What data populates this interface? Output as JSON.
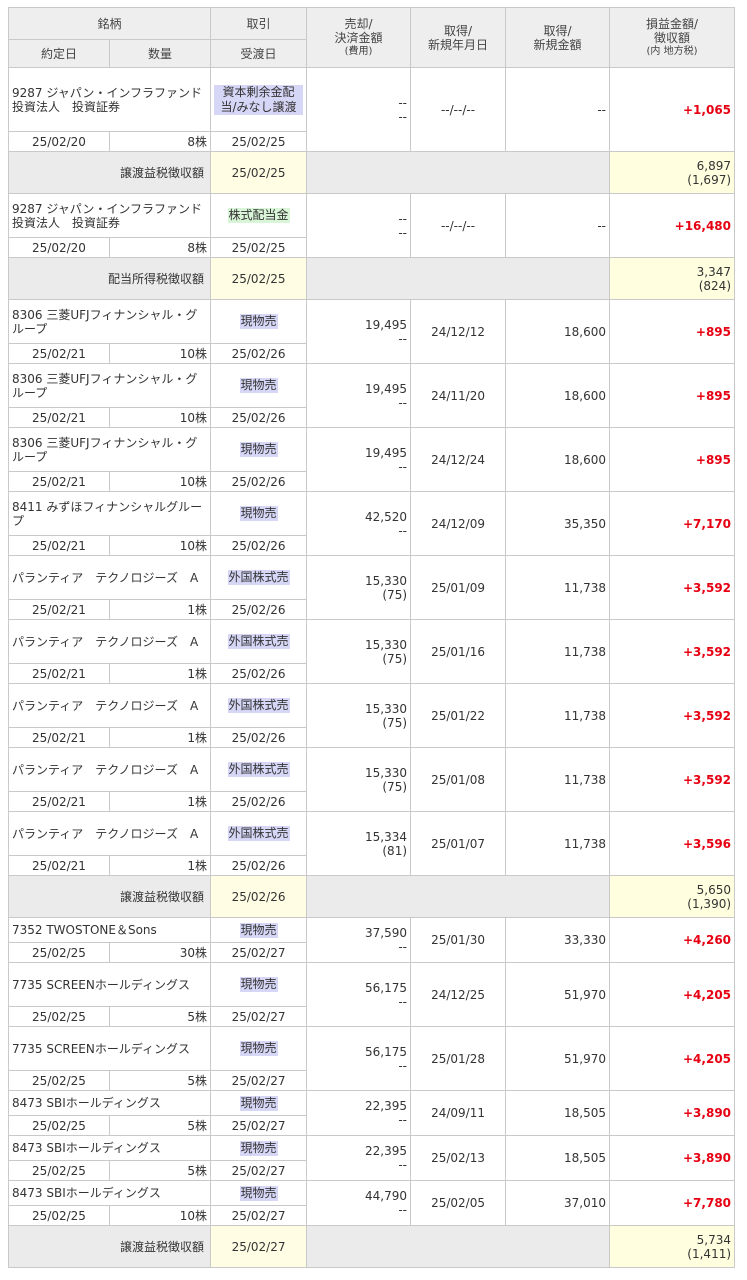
{
  "header": {
    "row1": [
      "銘柄",
      "取引",
      "売却/\n決済金額",
      "取得/\n新規年月日",
      "取得/\n新規金額",
      "損益金額/\n徴収額"
    ],
    "row2": [
      "約定日",
      "数量",
      "受渡日"
    ],
    "cost_note": "(費用)",
    "tax_note": "(内 地方税)"
  },
  "rows": [
    {
      "kind": "tx",
      "name": "9287 ジャパン・インフラファンド投資法人　投資証券",
      "type": "資本剰余金配当/みなし譲渡",
      "badge": "blue",
      "sell": "--",
      "cost": "--",
      "acq_date": "--/--/--",
      "acq_amt": "--",
      "pl": "+1,065",
      "trade_date": "25/02/20",
      "qty": "8株",
      "settle": "25/02/25",
      "h": 84
    },
    {
      "kind": "tax",
      "label": "譲渡益税徴収額",
      "date": "25/02/25",
      "amt": "6,897",
      "local": "(1,697)",
      "h": 42
    },
    {
      "kind": "tx",
      "name": "9287 ジャパン・インフラファンド投資法人　投資証券",
      "type": "株式配当金",
      "badge": "green",
      "sell": "--",
      "cost": "--",
      "acq_date": "--/--/--",
      "acq_amt": "--",
      "pl": "+16,480",
      "trade_date": "25/02/20",
      "qty": "8株",
      "settle": "25/02/25",
      "h": 64
    },
    {
      "kind": "tax",
      "label": "配当所得税徴収額",
      "date": "25/02/25",
      "amt": "3,347",
      "local": "(824)",
      "h": 42
    },
    {
      "kind": "tx",
      "name": "8306 三菱UFJフィナンシャル・グループ",
      "type": "現物売",
      "badge": "blue",
      "sell": "19,495",
      "cost": "--",
      "acq_date": "24/12/12",
      "acq_amt": "18,600",
      "pl": "+895",
      "trade_date": "25/02/21",
      "qty": "10株",
      "settle": "25/02/26",
      "h": 64
    },
    {
      "kind": "tx",
      "name": "8306 三菱UFJフィナンシャル・グループ",
      "type": "現物売",
      "badge": "blue",
      "sell": "19,495",
      "cost": "--",
      "acq_date": "24/11/20",
      "acq_amt": "18,600",
      "pl": "+895",
      "trade_date": "25/02/21",
      "qty": "10株",
      "settle": "25/02/26",
      "h": 64
    },
    {
      "kind": "tx",
      "name": "8306 三菱UFJフィナンシャル・グループ",
      "type": "現物売",
      "badge": "blue",
      "sell": "19,495",
      "cost": "--",
      "acq_date": "24/12/24",
      "acq_amt": "18,600",
      "pl": "+895",
      "trade_date": "25/02/21",
      "qty": "10株",
      "settle": "25/02/26",
      "h": 64
    },
    {
      "kind": "tx",
      "name": "8411 みずほフィナンシャルグループ",
      "type": "現物売",
      "badge": "blue",
      "sell": "42,520",
      "cost": "--",
      "acq_date": "24/12/09",
      "acq_amt": "35,350",
      "pl": "+7,170",
      "trade_date": "25/02/21",
      "qty": "10株",
      "settle": "25/02/26",
      "h": 64
    },
    {
      "kind": "tx",
      "name": "パランティア　テクノロジーズ　A",
      "type": "外国株式売",
      "badge": "blue",
      "sell": "15,330",
      "cost": "(75)",
      "acq_date": "25/01/09",
      "acq_amt": "11,738",
      "pl": "+3,592",
      "trade_date": "25/02/21",
      "qty": "1株",
      "settle": "25/02/26",
      "h": 64
    },
    {
      "kind": "tx",
      "name": "パランティア　テクノロジーズ　A",
      "type": "外国株式売",
      "badge": "blue",
      "sell": "15,330",
      "cost": "(75)",
      "acq_date": "25/01/16",
      "acq_amt": "11,738",
      "pl": "+3,592",
      "trade_date": "25/02/21",
      "qty": "1株",
      "settle": "25/02/26",
      "h": 64
    },
    {
      "kind": "tx",
      "name": "パランティア　テクノロジーズ　A",
      "type": "外国株式売",
      "badge": "blue",
      "sell": "15,330",
      "cost": "(75)",
      "acq_date": "25/01/22",
      "acq_amt": "11,738",
      "pl": "+3,592",
      "trade_date": "25/02/21",
      "qty": "1株",
      "settle": "25/02/26",
      "h": 64
    },
    {
      "kind": "tx",
      "name": "パランティア　テクノロジーズ　A",
      "type": "外国株式売",
      "badge": "blue",
      "sell": "15,330",
      "cost": "(75)",
      "acq_date": "25/01/08",
      "acq_amt": "11,738",
      "pl": "+3,592",
      "trade_date": "25/02/21",
      "qty": "1株",
      "settle": "25/02/26",
      "h": 64
    },
    {
      "kind": "tx",
      "name": "パランティア　テクノロジーズ　A",
      "type": "外国株式売",
      "badge": "blue",
      "sell": "15,334",
      "cost": "(81)",
      "acq_date": "25/01/07",
      "acq_amt": "11,738",
      "pl": "+3,596",
      "trade_date": "25/02/21",
      "qty": "1株",
      "settle": "25/02/26",
      "h": 64
    },
    {
      "kind": "tax",
      "label": "譲渡益税徴収額",
      "date": "25/02/26",
      "amt": "5,650",
      "local": "(1,390)",
      "h": 42
    },
    {
      "kind": "tx",
      "name": "7352 TWOSTONE＆Sons",
      "type": "現物売",
      "badge": "blue",
      "sell": "37,590",
      "cost": "--",
      "acq_date": "25/01/30",
      "acq_amt": "33,330",
      "pl": "+4,260",
      "trade_date": "25/02/25",
      "qty": "30株",
      "settle": "25/02/27",
      "h": 45
    },
    {
      "kind": "tx",
      "name": "7735 SCREENホールディングス",
      "type": "現物売",
      "badge": "blue",
      "sell": "56,175",
      "cost": "--",
      "acq_date": "24/12/25",
      "acq_amt": "51,970",
      "pl": "+4,205",
      "trade_date": "25/02/25",
      "qty": "5株",
      "settle": "25/02/27",
      "h": 64
    },
    {
      "kind": "tx",
      "name": "7735 SCREENホールディングス",
      "type": "現物売",
      "badge": "blue",
      "sell": "56,175",
      "cost": "--",
      "acq_date": "25/01/28",
      "acq_amt": "51,970",
      "pl": "+4,205",
      "trade_date": "25/02/25",
      "qty": "5株",
      "settle": "25/02/27",
      "h": 64
    },
    {
      "kind": "tx",
      "name": "8473 SBIホールディングス",
      "type": "現物売",
      "badge": "blue",
      "sell": "22,395",
      "cost": "--",
      "acq_date": "24/09/11",
      "acq_amt": "18,505",
      "pl": "+3,890",
      "trade_date": "25/02/25",
      "qty": "5株",
      "settle": "25/02/27",
      "h": 45
    },
    {
      "kind": "tx",
      "name": "8473 SBIホールディングス",
      "type": "現物売",
      "badge": "blue",
      "sell": "22,395",
      "cost": "--",
      "acq_date": "25/02/13",
      "acq_amt": "18,505",
      "pl": "+3,890",
      "trade_date": "25/02/25",
      "qty": "5株",
      "settle": "25/02/27",
      "h": 45
    },
    {
      "kind": "tx",
      "name": "8473 SBIホールディングス",
      "type": "現物売",
      "badge": "blue",
      "sell": "44,790",
      "cost": "--",
      "acq_date": "25/02/05",
      "acq_amt": "37,010",
      "pl": "+7,780",
      "trade_date": "25/02/25",
      "qty": "10株",
      "settle": "25/02/27",
      "h": 45
    },
    {
      "kind": "tax",
      "label": "譲渡益税徴収額",
      "date": "25/02/27",
      "amt": "5,734",
      "local": "(1,411)",
      "h": 42
    }
  ]
}
